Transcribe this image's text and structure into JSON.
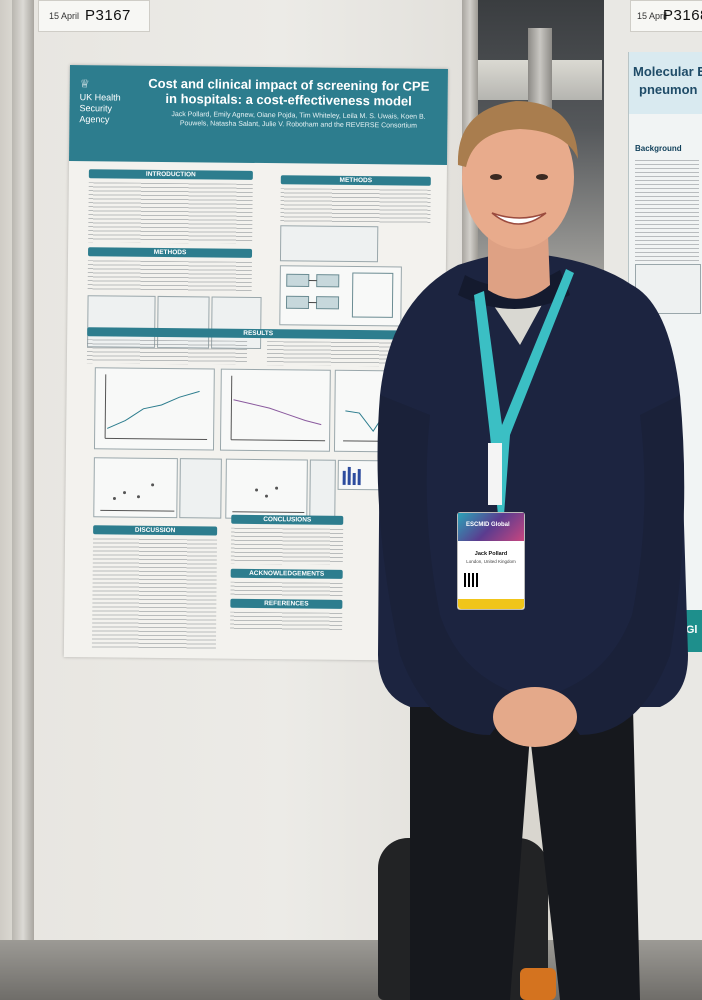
{
  "photo": {
    "description_free": true
  },
  "left_board_tag": {
    "date": "15 April",
    "code": "P3167"
  },
  "right_board_tag": {
    "date": "15 April",
    "code": "P3168"
  },
  "poster": {
    "logo_lines": [
      "UK Health",
      "Security",
      "Agency"
    ],
    "title": "Cost and clinical impact of screening for CPE in hospitals: a cost-effectiveness model",
    "authors": "Jack Pollard, Emily Agnew, Oiane Pojda, Tim Whiteley, Leila M. S. Uwais, Koen B. Pouwels, Natasha Salant, Julie V. Robotham and the REVERSE Consortium",
    "sections": {
      "introduction": "INTRODUCTION",
      "methods_left": "METHODS",
      "methods_right": "METHODS",
      "results": "RESULTS",
      "discussion": "DISCUSSION",
      "conclusions": "CONCLUSIONS",
      "acknowledgements": "ACKNOWLEDGEMENTS",
      "references": "REFERENCES"
    }
  },
  "right_poster": {
    "title_line1": "Molecular E",
    "title_line2": "pneumon",
    "section": "Background",
    "footer": "ESCMID Gl"
  },
  "badge": {
    "header": "ESCMID Global",
    "name": "Jack Pollard",
    "location": "London, United Kingdom"
  },
  "colors": {
    "poster_teal": "#2d7d8e",
    "badge_footer": "#f0c51a",
    "lanyard": "#3bbfc4",
    "sweater": "#1c2440"
  }
}
